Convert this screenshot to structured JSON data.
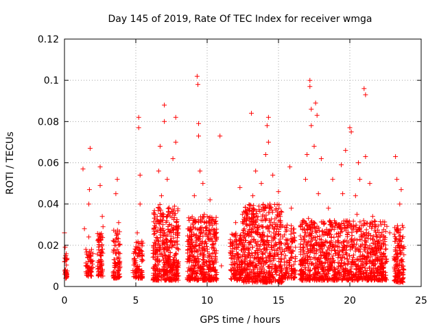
{
  "chart_data": {
    "type": "scatter",
    "title": "Day 145 of 2019, Rate Of TEC Index for receiver wmga",
    "xlabel": "GPS time / hours",
    "ylabel": "ROTI / TECUs",
    "xlim": [
      0,
      25
    ],
    "ylim": [
      0,
      0.12
    ],
    "x_ticks": [
      "0",
      "5",
      "10",
      "15",
      "20",
      "25"
    ],
    "y_ticks": [
      "0",
      "0.02",
      "0.04",
      "0.06",
      "0.08",
      "0.1",
      "0.12"
    ],
    "x_tick_values": [
      0,
      5,
      10,
      15,
      20,
      25
    ],
    "y_tick_values": [
      0,
      0.02,
      0.04,
      0.06,
      0.08,
      0.1,
      0.12
    ],
    "grid": true,
    "marker": "plus",
    "color": "#ff0000",
    "series": [
      {
        "values": [
          [
            0.0,
            0.026
          ],
          [
            0.0,
            0.012
          ],
          [
            0.05,
            0.008
          ],
          [
            0.1,
            0.004
          ],
          [
            0.05,
            0.019
          ],
          [
            0.1,
            0.015
          ],
          [
            1.3,
            0.057
          ],
          [
            1.4,
            0.028
          ],
          [
            1.5,
            0.01
          ],
          [
            1.5,
            0.018
          ],
          [
            1.7,
            0.024
          ],
          [
            1.7,
            0.04
          ],
          [
            1.75,
            0.047
          ],
          [
            1.8,
            0.067
          ],
          [
            1.8,
            0.013
          ],
          [
            1.9,
            0.009
          ],
          [
            1.9,
            0.005
          ],
          [
            2.0,
            0.016
          ],
          [
            2.4,
            0.022
          ],
          [
            2.5,
            0.049
          ],
          [
            2.5,
            0.058
          ],
          [
            2.6,
            0.012
          ],
          [
            2.6,
            0.006
          ],
          [
            2.65,
            0.034
          ],
          [
            2.7,
            0.029
          ],
          [
            3.5,
            0.013
          ],
          [
            3.6,
            0.02
          ],
          [
            3.6,
            0.045
          ],
          [
            3.7,
            0.052
          ],
          [
            3.7,
            0.005
          ],
          [
            3.8,
            0.031
          ],
          [
            3.8,
            0.008
          ],
          [
            4.9,
            0.012
          ],
          [
            5.0,
            0.018
          ],
          [
            5.1,
            0.026
          ],
          [
            5.2,
            0.082
          ],
          [
            5.2,
            0.077
          ],
          [
            5.3,
            0.054
          ],
          [
            5.3,
            0.04
          ],
          [
            5.4,
            0.005
          ],
          [
            5.4,
            0.021
          ],
          [
            6.4,
            0.01
          ],
          [
            6.5,
            0.034
          ],
          [
            6.6,
            0.056
          ],
          [
            6.7,
            0.068
          ],
          [
            6.8,
            0.044
          ],
          [
            6.9,
            0.03
          ],
          [
            7.0,
            0.088
          ],
          [
            7.0,
            0.08
          ],
          [
            7.1,
            0.015
          ],
          [
            7.2,
            0.052
          ],
          [
            7.3,
            0.036
          ],
          [
            7.5,
            0.006
          ],
          [
            7.6,
            0.062
          ],
          [
            7.8,
            0.082
          ],
          [
            7.8,
            0.07
          ],
          [
            7.9,
            0.022
          ],
          [
            8.0,
            0.012
          ],
          [
            8.8,
            0.018
          ],
          [
            9.0,
            0.03
          ],
          [
            9.1,
            0.044
          ],
          [
            9.2,
            0.012
          ],
          [
            9.3,
            0.102
          ],
          [
            9.35,
            0.098
          ],
          [
            9.4,
            0.079
          ],
          [
            9.4,
            0.073
          ],
          [
            9.5,
            0.056
          ],
          [
            9.5,
            0.022
          ],
          [
            9.7,
            0.05
          ],
          [
            9.8,
            0.035
          ],
          [
            9.9,
            0.006
          ],
          [
            10.1,
            0.025
          ],
          [
            10.2,
            0.042
          ],
          [
            10.4,
            0.016
          ],
          [
            10.5,
            0.008
          ],
          [
            10.9,
            0.073
          ],
          [
            11.0,
            0.01
          ],
          [
            11.8,
            0.015
          ],
          [
            11.9,
            0.022
          ],
          [
            12.0,
            0.031
          ],
          [
            12.1,
            0.008
          ],
          [
            12.3,
            0.048
          ],
          [
            12.6,
            0.028
          ],
          [
            12.7,
            0.036
          ],
          [
            12.8,
            0.014
          ],
          [
            12.9,
            0.005
          ],
          [
            13.1,
            0.084
          ],
          [
            13.2,
            0.044
          ],
          [
            13.4,
            0.056
          ],
          [
            13.5,
            0.026
          ],
          [
            13.6,
            0.012
          ],
          [
            13.8,
            0.05
          ],
          [
            13.9,
            0.032
          ],
          [
            14.0,
            0.007
          ],
          [
            14.1,
            0.064
          ],
          [
            14.2,
            0.078
          ],
          [
            14.3,
            0.082
          ],
          [
            14.3,
            0.07
          ],
          [
            14.4,
            0.04
          ],
          [
            14.5,
            0.02
          ],
          [
            14.6,
            0.054
          ],
          [
            14.8,
            0.03
          ],
          [
            15.0,
            0.046
          ],
          [
            15.1,
            0.01
          ],
          [
            15.3,
            0.024
          ],
          [
            15.5,
            0.015
          ],
          [
            15.8,
            0.058
          ],
          [
            15.9,
            0.038
          ],
          [
            16.0,
            0.022
          ],
          [
            16.1,
            0.008
          ],
          [
            16.9,
            0.052
          ],
          [
            17.0,
            0.064
          ],
          [
            17.1,
            0.033
          ],
          [
            17.2,
            0.1
          ],
          [
            17.2,
            0.097
          ],
          [
            17.3,
            0.086
          ],
          [
            17.3,
            0.078
          ],
          [
            17.4,
            0.018
          ],
          [
            17.5,
            0.068
          ],
          [
            17.6,
            0.089
          ],
          [
            17.7,
            0.083
          ],
          [
            17.8,
            0.045
          ],
          [
            17.9,
            0.012
          ],
          [
            18.0,
            0.062
          ],
          [
            18.3,
            0.026
          ],
          [
            18.5,
            0.038
          ],
          [
            18.8,
            0.052
          ],
          [
            19.0,
            0.016
          ],
          [
            19.2,
            0.03
          ],
          [
            19.4,
            0.059
          ],
          [
            19.5,
            0.045
          ],
          [
            19.7,
            0.066
          ],
          [
            19.8,
            0.022
          ],
          [
            20.0,
            0.077
          ],
          [
            20.1,
            0.075
          ],
          [
            20.2,
            0.012
          ],
          [
            20.4,
            0.044
          ],
          [
            20.5,
            0.035
          ],
          [
            20.6,
            0.06
          ],
          [
            20.7,
            0.052
          ],
          [
            20.8,
            0.025
          ],
          [
            21.0,
            0.096
          ],
          [
            21.1,
            0.093
          ],
          [
            21.1,
            0.063
          ],
          [
            21.2,
            0.014
          ],
          [
            21.4,
            0.05
          ],
          [
            21.6,
            0.034
          ],
          [
            21.9,
            0.022
          ],
          [
            22.2,
            0.03
          ],
          [
            22.5,
            0.018
          ],
          [
            22.8,
            0.026
          ],
          [
            23.2,
            0.063
          ],
          [
            23.3,
            0.052
          ],
          [
            23.4,
            0.028
          ],
          [
            23.5,
            0.04
          ],
          [
            23.6,
            0.047
          ],
          [
            23.7,
            0.012
          ],
          [
            23.7,
            0.004
          ]
        ]
      }
    ],
    "dense_bands": [
      {
        "x": [
          0.0,
          0.2
        ],
        "y": [
          0.004,
          0.016
        ],
        "n": 30
      },
      {
        "x": [
          1.5,
          2.0
        ],
        "y": [
          0.005,
          0.018
        ],
        "n": 55
      },
      {
        "x": [
          2.3,
          2.7
        ],
        "y": [
          0.005,
          0.026
        ],
        "n": 70
      },
      {
        "x": [
          3.4,
          3.9
        ],
        "y": [
          0.004,
          0.028
        ],
        "n": 85
      },
      {
        "x": [
          4.8,
          5.5
        ],
        "y": [
          0.004,
          0.022
        ],
        "n": 95
      },
      {
        "x": [
          6.2,
          8.0
        ],
        "y": [
          0.003,
          0.04
        ],
        "n": 420
      },
      {
        "x": [
          8.6,
          10.7
        ],
        "y": [
          0.003,
          0.034
        ],
        "n": 430
      },
      {
        "x": [
          11.6,
          12.4
        ],
        "y": [
          0.003,
          0.026
        ],
        "n": 130
      },
      {
        "x": [
          12.4,
          15.3
        ],
        "y": [
          0.002,
          0.04
        ],
        "n": 620
      },
      {
        "x": [
          15.4,
          16.2
        ],
        "y": [
          0.004,
          0.03
        ],
        "n": 110
      },
      {
        "x": [
          16.5,
          22.6
        ],
        "y": [
          0.003,
          0.032
        ],
        "n": 1100
      },
      {
        "x": [
          23.1,
          23.8
        ],
        "y": [
          0.002,
          0.03
        ],
        "n": 140
      }
    ]
  }
}
